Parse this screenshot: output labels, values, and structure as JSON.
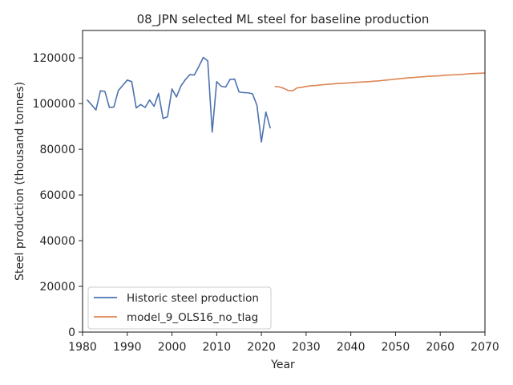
{
  "chart_data": {
    "type": "line",
    "title": "08_JPN selected ML steel for baseline production",
    "xlabel": "Year",
    "ylabel": "Steel production (thousand tonnes)",
    "xlim": [
      1980,
      2070
    ],
    "ylim": [
      0,
      132000
    ],
    "xticks": [
      1980,
      1990,
      2000,
      2010,
      2020,
      2030,
      2040,
      2050,
      2060,
      2070
    ],
    "yticks": [
      0,
      20000,
      40000,
      60000,
      80000,
      100000,
      120000
    ],
    "grid": false,
    "legend_position": "lower-left",
    "series": [
      {
        "name": "Historic steel production",
        "color": "#4c72b0",
        "x": [
          1981,
          1982,
          1983,
          1984,
          1985,
          1986,
          1987,
          1988,
          1989,
          1990,
          1991,
          1992,
          1993,
          1994,
          1995,
          1996,
          1997,
          1998,
          1999,
          2000,
          2001,
          2002,
          2003,
          2004,
          2005,
          2006,
          2007,
          2008,
          2009,
          2010,
          2011,
          2012,
          2013,
          2014,
          2015,
          2016,
          2017,
          2018,
          2019,
          2020,
          2021,
          2022
        ],
        "y": [
          101700,
          99500,
          97200,
          105600,
          105300,
          98300,
          98500,
          105700,
          108000,
          110300,
          109600,
          98100,
          99600,
          98300,
          101600,
          98800,
          104500,
          93500,
          94200,
          106400,
          102900,
          107700,
          110500,
          112700,
          112500,
          116200,
          120200,
          118700,
          87500,
          109600,
          107600,
          107200,
          110600,
          110700,
          105100,
          104800,
          104700,
          104300,
          99300,
          83200,
          96300,
          89200
        ]
      },
      {
        "name": "model_9_OLS16_no_tlag",
        "color": "#dd8452",
        "x": [
          2023,
          2024,
          2025,
          2026,
          2027,
          2028,
          2029,
          2030,
          2031,
          2032,
          2033,
          2034,
          2035,
          2036,
          2037,
          2038,
          2039,
          2040,
          2041,
          2042,
          2043,
          2044,
          2045,
          2046,
          2047,
          2048,
          2049,
          2050,
          2051,
          2052,
          2053,
          2054,
          2055,
          2056,
          2057,
          2058,
          2059,
          2060,
          2061,
          2062,
          2063,
          2064,
          2065,
          2066,
          2067,
          2068,
          2069,
          2070
        ],
        "y": [
          107500,
          107300,
          106700,
          105700,
          105600,
          106900,
          107100,
          107500,
          107800,
          107900,
          108100,
          108300,
          108500,
          108600,
          108800,
          108900,
          109000,
          109100,
          109300,
          109400,
          109500,
          109600,
          109800,
          109900,
          110100,
          110300,
          110500,
          110700,
          110900,
          111100,
          111300,
          111400,
          111600,
          111700,
          111900,
          112000,
          112100,
          112200,
          112400,
          112500,
          112600,
          112700,
          112800,
          113000,
          113100,
          113200,
          113300,
          113400
        ]
      }
    ]
  }
}
